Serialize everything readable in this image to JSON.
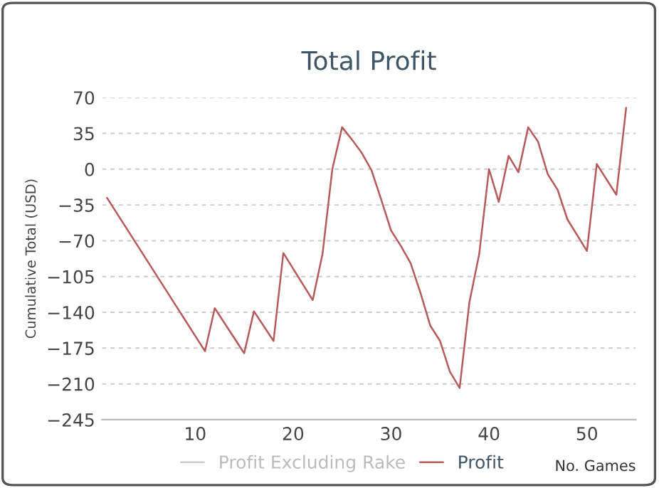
{
  "chart_data": {
    "type": "line",
    "title": "Total Profit",
    "xlabel": "No. Games",
    "ylabel": "Cumulative Total (USD)",
    "xlim": [
      0.5,
      55
    ],
    "xticks": [
      10,
      20,
      30,
      40,
      50
    ],
    "ylim": [
      -245,
      70
    ],
    "yticks": [
      -245,
      -210,
      -175,
      -140,
      -105,
      -70,
      -35,
      0,
      35,
      70
    ],
    "grid": "y",
    "legend": "bottom",
    "marker": "none",
    "line_style": "solid",
    "series": [
      {
        "name": "Profit Excluding Rake",
        "color": "#cccccc"
      },
      {
        "name": "Profit",
        "color": "#b85a5a",
        "x": [
          1,
          11,
          12,
          15,
          16,
          18,
          19,
          22,
          23,
          24,
          25,
          26,
          27,
          28,
          29,
          30,
          31,
          32,
          33,
          34,
          35,
          36,
          37,
          38,
          39,
          40,
          41,
          42,
          43,
          44,
          45,
          46,
          47,
          48,
          50,
          51,
          53,
          54
        ],
        "values": [
          -28,
          -178,
          -136,
          -180,
          -139,
          -168,
          -82,
          -128,
          -83,
          0,
          41,
          29,
          16,
          -1,
          -30,
          -60,
          -75,
          -92,
          -121,
          -153,
          -168,
          -198,
          -214,
          -130,
          -83,
          0,
          -32,
          13,
          -3,
          41,
          27,
          -5,
          -20,
          -49,
          -80,
          5,
          -25,
          60
        ]
      }
    ]
  }
}
